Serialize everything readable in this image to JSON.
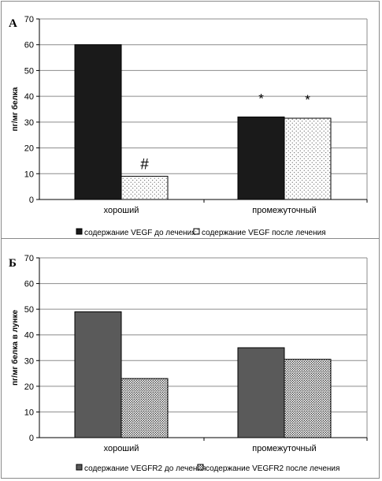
{
  "figure": {
    "panels": [
      {
        "letter": "А",
        "ylabel": "пг/мг белка",
        "annotations": [
          "#",
          "*",
          "*"
        ]
      },
      {
        "letter": "Б",
        "ylabel": "пг/мг белка в лунке"
      }
    ]
  },
  "chart_data": [
    {
      "type": "bar",
      "title": "",
      "xlabel": "",
      "ylabel": "пг/мг белка",
      "ylim": [
        0,
        70
      ],
      "yticks": [
        0,
        10,
        20,
        30,
        40,
        50,
        60,
        70
      ],
      "grid": true,
      "legend_position": "bottom",
      "categories": [
        "хороший",
        "промежуточный"
      ],
      "series": [
        {
          "name": "содержание VEGF до лечения",
          "values": [
            60,
            32
          ],
          "color": "#1a1a1a",
          "pattern": "solid"
        },
        {
          "name": "содержание VEGF после лечения",
          "values": [
            9,
            31.5
          ],
          "color": "#ffffff",
          "pattern": "dots"
        }
      ],
      "annotations": [
        {
          "text": "#",
          "category": "хороший",
          "series": 1
        },
        {
          "text": "*",
          "category": "промежуточный",
          "series": 0
        },
        {
          "text": "*",
          "category": "промежуточный",
          "series": 1
        }
      ]
    },
    {
      "type": "bar",
      "title": "",
      "xlabel": "",
      "ylabel": "пг/мг белка в лунке",
      "ylim": [
        0,
        70
      ],
      "yticks": [
        0,
        10,
        20,
        30,
        40,
        50,
        60,
        70
      ],
      "grid": true,
      "legend_position": "bottom",
      "categories": [
        "хороший",
        "промежуточный"
      ],
      "series": [
        {
          "name": "содержание VEGFR2 до лечения",
          "values": [
            49,
            35
          ],
          "color": "#5a5a5a",
          "pattern": "solid"
        },
        {
          "name": "содержание VEGFR2 после лечения",
          "values": [
            23,
            30.5
          ],
          "color": "#ffffff",
          "pattern": "dense-dots"
        }
      ],
      "annotations": []
    }
  ]
}
